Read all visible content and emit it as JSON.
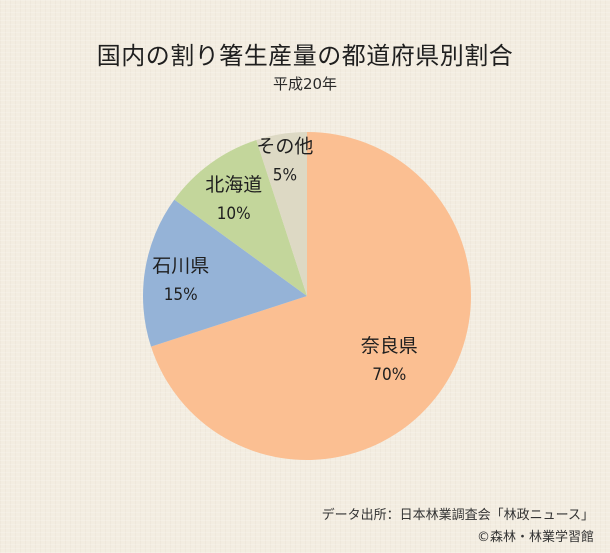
{
  "chart_data": {
    "type": "pie",
    "title": "国内の割り箸生産量の都道府県別割合",
    "subtitle": "平成20年",
    "slices": [
      {
        "label": "奈良県",
        "value": 70,
        "value_label": "70%",
        "color": "#fbbf92"
      },
      {
        "label": "石川県",
        "value": 15,
        "value_label": "15%",
        "color": "#95b3d7"
      },
      {
        "label": "北海道",
        "value": 10,
        "value_label": "10%",
        "color": "#c3d69b"
      },
      {
        "label": "その他",
        "value": 5,
        "value_label": "5%",
        "color": "#ddd9c4"
      }
    ],
    "start_angle": "12 o'clock",
    "direction": "clockwise"
  },
  "footer": {
    "source": "データ出所：日本林業調査会「林政ニュース」",
    "credit": "©森林・林業学習館"
  }
}
